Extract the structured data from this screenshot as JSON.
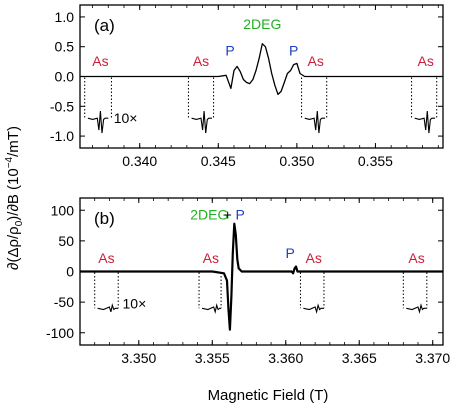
{
  "figure": {
    "xlabel": "Magnetic Field (T)",
    "ylabel_parts": [
      "∂(Δρ/ρ",
      "0",
      ")/∂B (10",
      "−4",
      "/mT)"
    ],
    "colors": {
      "axis": "#000000",
      "as": "#cc1f3a",
      "p": "#1f3fbf",
      "deg": "#22b022"
    }
  },
  "chart_data": [
    {
      "type": "line",
      "panel_label": "(a)",
      "xlim": [
        0.3362,
        0.3593
      ],
      "ylim": [
        -1.2,
        1.2
      ],
      "xticks": [
        0.34,
        0.345,
        0.35,
        0.355
      ],
      "xtick_labels": [
        "0.340",
        "0.345",
        "0.350",
        "0.355"
      ],
      "yticks": [
        1.0,
        0.5,
        0.0,
        -0.5,
        -1.0
      ],
      "ytick_labels": [
        "1.0",
        "0.5",
        "0.0",
        "-0.5",
        "-1.0"
      ],
      "main_trace": {
        "x": [
          0.3362,
          0.34,
          0.344,
          0.345,
          0.3455,
          0.3458,
          0.346,
          0.3462,
          0.3464,
          0.3466,
          0.3468,
          0.347,
          0.3472,
          0.3474,
          0.3476,
          0.3478,
          0.348,
          0.3482,
          0.3484,
          0.3486,
          0.3488,
          0.349,
          0.3492,
          0.3494,
          0.3496,
          0.3498,
          0.35,
          0.3502,
          0.3505,
          0.351,
          0.355,
          0.3593
        ],
        "y": [
          0.0,
          0.0,
          0.0,
          0.0,
          0.02,
          -0.2,
          0.1,
          0.17,
          0.08,
          -0.05,
          -0.1,
          -0.12,
          -0.05,
          0.1,
          0.3,
          0.55,
          0.5,
          0.3,
          0.05,
          -0.15,
          -0.3,
          -0.25,
          -0.1,
          0.05,
          0.1,
          0.2,
          0.22,
          0.05,
          0.0,
          0.0,
          0.0,
          0.0
        ]
      },
      "insets": [
        {
          "x": [
            0.3367,
            0.337,
            0.3373,
            0.3374,
            0.3375,
            0.3376,
            0.3377,
            0.3378,
            0.338
          ],
          "y": [
            -0.7,
            -0.72,
            -0.7,
            -0.9,
            -0.58,
            -0.95,
            -0.72,
            -0.7,
            -0.7
          ],
          "bounds": [
            0.3365,
            0.3382
          ]
        },
        {
          "x": [
            0.3433,
            0.3436,
            0.3439,
            0.344,
            0.3441,
            0.3442,
            0.3443,
            0.3444,
            0.3446
          ],
          "y": [
            -0.7,
            -0.72,
            -0.7,
            -0.9,
            -0.58,
            -0.95,
            -0.72,
            -0.7,
            -0.7
          ],
          "bounds": [
            0.3431,
            0.3447
          ]
        },
        {
          "x": [
            0.3505,
            0.3508,
            0.3511,
            0.3512,
            0.3513,
            0.3514,
            0.3515,
            0.3516,
            0.3518
          ],
          "y": [
            -0.7,
            -0.72,
            -0.7,
            -0.9,
            -0.58,
            -0.95,
            -0.72,
            -0.7,
            -0.7
          ],
          "bounds": [
            0.3503,
            0.3519
          ]
        },
        {
          "x": [
            0.3575,
            0.3578,
            0.3581,
            0.3582,
            0.3583,
            0.3584,
            0.3585,
            0.3586,
            0.3588
          ],
          "y": [
            -0.7,
            -0.72,
            -0.7,
            -0.9,
            -0.58,
            -0.95,
            -0.72,
            -0.7,
            -0.7
          ],
          "bounds": [
            0.3573,
            0.3589
          ]
        }
      ],
      "annotations": [
        {
          "text": "As",
          "x": 0.3375,
          "y": 0.18,
          "color": "as"
        },
        {
          "text": "As",
          "x": 0.3439,
          "y": 0.18,
          "color": "as"
        },
        {
          "text": "P",
          "x": 0.34575,
          "y": 0.35,
          "color": "p"
        },
        {
          "text": "2DEG",
          "x": 0.3478,
          "y": 0.8,
          "color": "deg"
        },
        {
          "text": "P",
          "x": 0.3498,
          "y": 0.35,
          "color": "p"
        },
        {
          "text": "As",
          "x": 0.3512,
          "y": 0.18,
          "color": "as"
        },
        {
          "text": "As",
          "x": 0.3582,
          "y": 0.18,
          "color": "as"
        },
        {
          "text": "10×",
          "x": 0.3391,
          "y": -0.78,
          "color": "axis"
        }
      ]
    },
    {
      "type": "line",
      "panel_label": "(b)",
      "xlim": [
        3.346,
        3.3707
      ],
      "ylim": [
        -120,
        120
      ],
      "xticks": [
        3.35,
        3.355,
        3.36,
        3.365,
        3.37
      ],
      "xtick_labels": [
        "3.350",
        "3.355",
        "3.360",
        "3.365",
        "3.370"
      ],
      "yticks": [
        100,
        50,
        0,
        -50,
        -100
      ],
      "ytick_labels": [
        "100",
        "50",
        "0",
        "-50",
        "-100"
      ],
      "main_trace": {
        "x": [
          3.346,
          3.35,
          3.355,
          3.3558,
          3.356,
          3.3561,
          3.3562,
          3.3563,
          3.3564,
          3.3565,
          3.3566,
          3.3567,
          3.3568,
          3.357,
          3.3575,
          3.36,
          3.3604,
          3.3605,
          3.3606,
          3.3607,
          3.3608,
          3.361,
          3.365,
          3.3707
        ],
        "y": [
          0,
          0,
          0,
          -3,
          -15,
          -60,
          -95,
          -40,
          30,
          78,
          60,
          20,
          5,
          0,
          0,
          0,
          0,
          -3,
          5,
          8,
          0,
          0,
          0,
          0
        ]
      },
      "insets": [
        {
          "x": [
            3.3472,
            3.3476,
            3.348,
            3.3481,
            3.3482,
            3.3483,
            3.3484,
            3.3486
          ],
          "y": [
            -60,
            -62,
            -58,
            -66,
            -55,
            -62,
            -60,
            -60
          ],
          "bounds": [
            3.347,
            3.3486
          ]
        },
        {
          "x": [
            3.3543,
            3.3547,
            3.3551,
            3.3552,
            3.3553,
            3.3554,
            3.3555,
            3.3556
          ],
          "y": [
            -60,
            -62,
            -58,
            -66,
            -55,
            -62,
            -60,
            -60
          ],
          "bounds": [
            3.3541,
            3.3556
          ]
        },
        {
          "x": [
            3.3612,
            3.3616,
            3.362,
            3.3621,
            3.3622,
            3.3623,
            3.3624,
            3.3626
          ],
          "y": [
            -60,
            -62,
            -58,
            -66,
            -55,
            -62,
            -60,
            -60
          ],
          "bounds": [
            3.361,
            3.3626
          ]
        },
        {
          "x": [
            3.3682,
            3.3686,
            3.369,
            3.3691,
            3.3692,
            3.3693,
            3.3694,
            3.3696
          ],
          "y": [
            -60,
            -62,
            -58,
            -66,
            -55,
            -62,
            -60,
            -60
          ],
          "bounds": [
            3.368,
            3.3696
          ]
        }
      ],
      "annotations": [
        {
          "text": "As",
          "x": 3.3478,
          "y": 14,
          "color": "as"
        },
        {
          "text": "As",
          "x": 3.3549,
          "y": 14,
          "color": "as"
        },
        {
          "text": "2DEG",
          "x": 3.3548,
          "y": 85,
          "color": "deg"
        },
        {
          "text": "+",
          "x": 3.35605,
          "y": 85,
          "color": "axis"
        },
        {
          "text": "P",
          "x": 3.3569,
          "y": 85,
          "color": "p"
        },
        {
          "text": "P",
          "x": 3.3603,
          "y": 22,
          "color": "p"
        },
        {
          "text": "As",
          "x": 3.3619,
          "y": 14,
          "color": "as"
        },
        {
          "text": "As",
          "x": 3.3689,
          "y": 14,
          "color": "as"
        },
        {
          "text": "10×",
          "x": 3.3497,
          "y": -60,
          "color": "axis"
        }
      ]
    }
  ]
}
